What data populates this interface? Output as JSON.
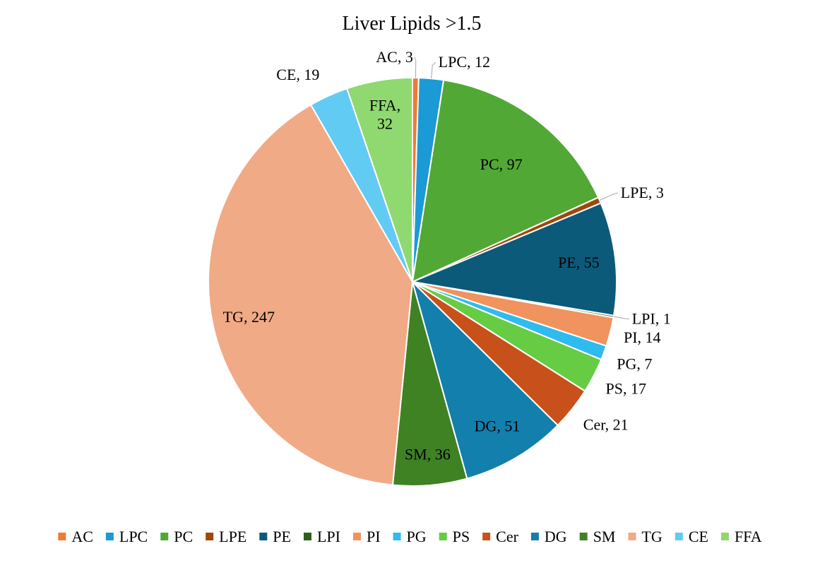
{
  "chart_data": {
    "type": "pie",
    "title": "Liver Lipids >1.5",
    "legend_position": "bottom",
    "slices": [
      {
        "label": "AC",
        "value": 3,
        "color": "#ED7D31"
      },
      {
        "label": "LPC",
        "value": 12,
        "color": "#1B9AD6"
      },
      {
        "label": "PC",
        "value": 97,
        "color": "#52A834"
      },
      {
        "label": "LPE",
        "value": 3,
        "color": "#9E480E"
      },
      {
        "label": "PE",
        "value": 55,
        "color": "#0B5A7A"
      },
      {
        "label": "LPI",
        "value": 1,
        "color": "#2F5F1F"
      },
      {
        "label": "PI",
        "value": 14,
        "color": "#F0935E"
      },
      {
        "label": "PG",
        "value": 7,
        "color": "#2EBBF0"
      },
      {
        "label": "PS",
        "value": 17,
        "color": "#66CC44"
      },
      {
        "label": "Cer",
        "value": 21,
        "color": "#C8511B"
      },
      {
        "label": "DG",
        "value": 51,
        "color": "#137FAD"
      },
      {
        "label": "SM",
        "value": 36,
        "color": "#3E8224"
      },
      {
        "label": "TG",
        "value": 247,
        "color": "#F0AA86"
      },
      {
        "label": "CE",
        "value": 19,
        "color": "#62CBF4"
      },
      {
        "label": "FFA",
        "value": 32,
        "color": "#8FD970"
      }
    ]
  }
}
